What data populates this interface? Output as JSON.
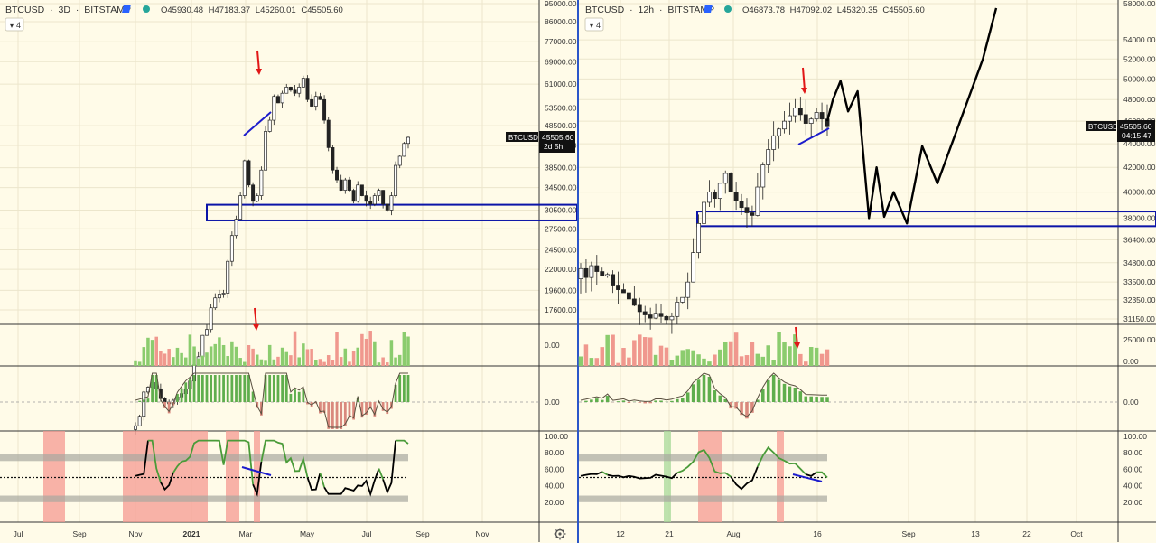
{
  "colors": {
    "background": "#fffbe8",
    "grid": "#ece6cc",
    "up": "#4a9b39",
    "down": "#dd5b54",
    "line": "#000000",
    "trend": "#1c1ccc",
    "box": "#0b14a8",
    "arrow": "#e11717",
    "text": "#333333",
    "volume_up": "#8bcc6e",
    "volume_down": "#f0988e",
    "hist_up": "#5fae4d",
    "hist_down": "#d9897d",
    "band_gray": "#a8a8a0",
    "highlight_red": "#f59a92",
    "highlight_green": "#a8d99a"
  },
  "left_panel": {
    "symbol": "BTCUSD",
    "interval": "3D",
    "exchange": "BITSTAMP",
    "ohlc": {
      "open": "O45930.48",
      "high": "H47183.37",
      "low": "L45260.01",
      "close": "C45505.60"
    },
    "indicator_count": "4",
    "price_tag": "45505.60",
    "countdown": "2d 5h",
    "time_labels": [
      "Jul",
      "Sep",
      "Nov",
      "2021",
      "Mar",
      "May",
      "Jul",
      "Sep",
      "Nov"
    ],
    "gear_icon": "gear-icon"
  },
  "right_panel": {
    "symbol": "BTCUSD",
    "interval": "12h",
    "exchange": "BITSTAMP",
    "ohlc": {
      "open": "O46873.78",
      "high": "H47092.02",
      "low": "L45320.35",
      "close": "C45505.60"
    },
    "indicator_count": "4",
    "symbol_tag": "BTCUSD",
    "price_tag": "45505.60",
    "countdown": "04:15:47",
    "time_labels": [
      "12",
      "21",
      "Aug",
      "16",
      "Sep",
      "13",
      "22",
      "Oct"
    ]
  },
  "chart_data": [
    {
      "type": "candlestick",
      "title": "BTCUSD · 3D · BITSTAMP",
      "scale": "log",
      "y_ticks": [
        95000,
        86000,
        77000,
        69000,
        61000,
        53500,
        48500,
        43500,
        38500,
        34500,
        30500,
        27500,
        24500,
        22000,
        19600,
        17600
      ],
      "y_tick_labels": [
        "95000.00",
        "86000.00",
        "77000.00",
        "69000.00",
        "61000.00",
        "53500.00",
        "48500.00",
        "43500.00",
        "38500.00",
        "34500.00",
        "30500.00",
        "27500.00",
        "24500.00",
        "22000.00",
        "19600.00",
        "17600.00"
      ],
      "last_price": 45505.6,
      "support_zone": [
        28800,
        31400
      ],
      "approx_closes": [
        9300,
        9800,
        11200,
        11500,
        11800,
        11400,
        10800,
        10600,
        10500,
        10700,
        10900,
        11100,
        11400,
        11900,
        13000,
        13600,
        15300,
        15800,
        17800,
        18800,
        19200,
        19300,
        23000,
        26500,
        29000,
        33000,
        40000,
        35000,
        32000,
        33000,
        38000,
        47000,
        50000,
        57000,
        55000,
        58000,
        60000,
        59000,
        58000,
        60000,
        63000,
        56000,
        54000,
        57000,
        56000,
        50000,
        43000,
        38000,
        36000,
        34000,
        36000,
        34000,
        32000,
        35000,
        33000,
        32000,
        31500,
        33000,
        34000,
        31500,
        30500,
        33000,
        39000,
        41000,
        44000,
        45505
      ],
      "indicators": {
        "volume_axis_label": "0.00",
        "macd_axis_label": "0.00",
        "rsi_ticks": [
          100,
          80,
          60,
          40,
          20
        ],
        "rsi_tick_labels": [
          "100.00",
          "80.00",
          "60.00",
          "40.00",
          "20.00"
        ],
        "rsi_band": [
          [
            70,
            78
          ],
          [
            20,
            28
          ]
        ],
        "rsi_midline": 50
      }
    },
    {
      "type": "candlestick",
      "title": "BTCUSD · 12h · BITSTAMP",
      "scale": "log",
      "y_ticks": [
        58000,
        54000,
        52000,
        50000,
        48000,
        46000,
        44000,
        42000,
        40000,
        38000,
        36400,
        34800,
        33500,
        32350,
        31150
      ],
      "y_tick_labels": [
        "58000.00",
        "54000.00",
        "52000.00",
        "50000.00",
        "48000.00",
        "46000.00",
        "44000.00",
        "42000.00",
        "40000.00",
        "38000.00",
        "36400.00",
        "34800.00",
        "33500.00",
        "32350.00",
        "31150.00"
      ],
      "last_price": 45505.6,
      "support_zone": [
        37400,
        38500
      ],
      "approx_closes": [
        34400,
        33800,
        34600,
        34200,
        33900,
        34000,
        33300,
        33000,
        32800,
        32400,
        32000,
        31600,
        31400,
        31200,
        31500,
        31300,
        31100,
        31300,
        32200,
        32500,
        33500,
        35500,
        37600,
        39200,
        40000,
        39500,
        40700,
        41500,
        40000,
        39300,
        38800,
        38400,
        38200,
        40400,
        42200,
        43500,
        44700,
        45300,
        46000,
        46500,
        47200,
        46600,
        45800,
        46200,
        46800,
        46200,
        45505
      ],
      "projection": [
        [
          0.0,
          46000
        ],
        [
          0.03,
          48000
        ],
        [
          0.07,
          49800
        ],
        [
          0.11,
          46900
        ],
        [
          0.16,
          48800
        ],
        [
          0.22,
          38000
        ],
        [
          0.26,
          42000
        ],
        [
          0.3,
          38100
        ],
        [
          0.35,
          40000
        ],
        [
          0.42,
          37600
        ],
        [
          0.5,
          43800
        ],
        [
          0.58,
          40700
        ],
        [
          0.7,
          46000
        ],
        [
          0.82,
          52000
        ],
        [
          0.89,
          57500
        ]
      ],
      "indicators": {
        "volume_axis_labels": [
          "25000.00",
          "0.00"
        ],
        "macd_axis_label": "0.00",
        "rsi_ticks": [
          100,
          80,
          60,
          40,
          20
        ],
        "rsi_tick_labels": [
          "100.00",
          "80.00",
          "60.00",
          "40.00",
          "20.00"
        ],
        "rsi_band": [
          [
            70,
            78
          ],
          [
            20,
            28
          ]
        ],
        "rsi_midline": 50
      }
    }
  ]
}
